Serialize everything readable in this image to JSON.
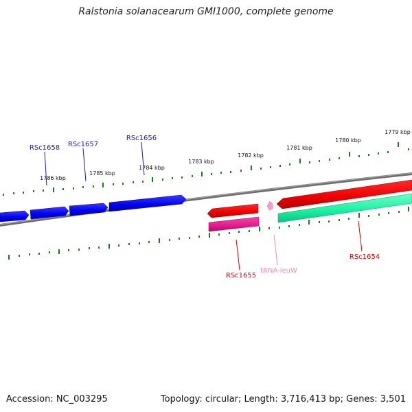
{
  "title": "Ralstonia solanacearum GMI1000, complete genome",
  "footer": {
    "accession": "Accession: NC_003295",
    "summary": "Topology: circular; Length: 3,716,413 bp; Genes: 3,501"
  },
  "colors": {
    "backbone": "#7a7a7a",
    "tick": "#1a7a1a",
    "reverse_gene": "#0000ee",
    "forward_gene": "#ee0000",
    "forward_gene_alt": "#e8198f",
    "trna": "#f2a0c8",
    "cds_secondary": "#19f0a0",
    "label_reverse": "#1a1a9a",
    "label_forward": "#cc0000",
    "label_trna": "#e88cba"
  },
  "scale_labels": [
    "1786 kbp",
    "1785 kbp",
    "1784 kbp",
    "1783 kbp",
    "1782 kbp",
    "1781 kbp",
    "1780 kbp",
    "1779 kbp"
  ],
  "gene_labels": {
    "rsc1658": "RSc1658",
    "rsc1657": "RSc1657",
    "rsc1656": "RSc1656",
    "rsc1655": "RSc1655",
    "trna_leuw": "tRNA-leuW",
    "rsc1654": "RSc1654"
  }
}
